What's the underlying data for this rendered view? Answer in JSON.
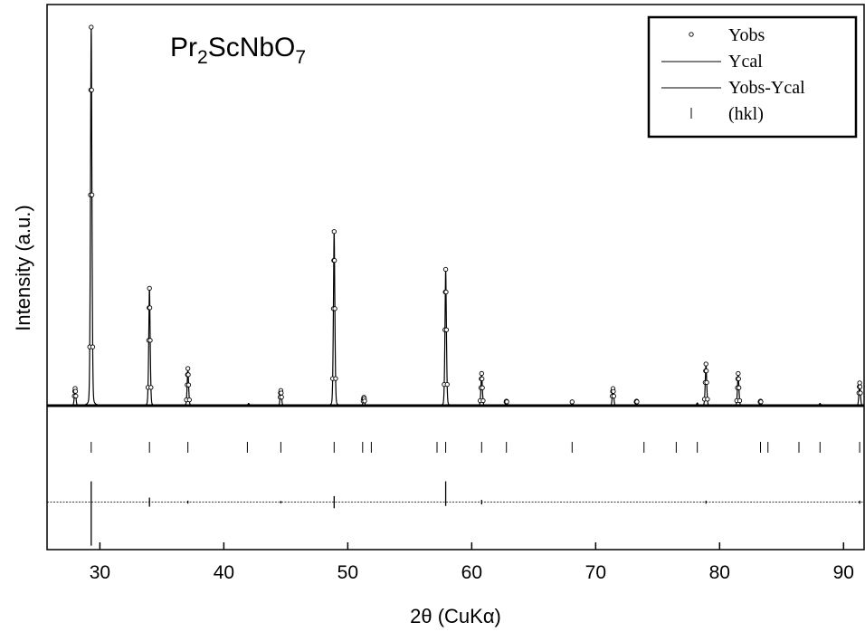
{
  "chart_data": {
    "type": "line",
    "compound_label": {
      "parts": [
        {
          "text": "Pr",
          "sub": false
        },
        {
          "text": "2",
          "sub": true
        },
        {
          "text": "ScNbO",
          "sub": false
        },
        {
          "text": "7",
          "sub": true
        }
      ]
    },
    "xlabel": "2θ (CuKα)",
    "ylabel": "Intensity (a.u.)",
    "xlim": [
      25.7,
      91.5
    ],
    "ylim": [
      -0.375,
      1.0
    ],
    "x_ticks": [
      30,
      40,
      50,
      60,
      70,
      80,
      90
    ],
    "x_tick_labels": [
      "30",
      "40",
      "50",
      "60",
      "70",
      "80",
      "90"
    ],
    "y_ticks_shown": false,
    "legend": {
      "position": "top-right",
      "entries": [
        {
          "label": "Yobs",
          "marker": "open-circle"
        },
        {
          "label": "Ycal",
          "marker": "line"
        },
        {
          "label": "Yobs-Ycal",
          "marker": "line"
        },
        {
          "label": "(hkl)",
          "marker": "vertical-tick"
        }
      ]
    },
    "background_level": 0.0,
    "peaks": [
      {
        "x": 28.0,
        "y": 0.045
      },
      {
        "x": 29.3,
        "y": 1.0
      },
      {
        "x": 34.0,
        "y": 0.31
      },
      {
        "x": 37.1,
        "y": 0.098
      },
      {
        "x": 42.0,
        "y": 0.006
      },
      {
        "x": 44.6,
        "y": 0.04
      },
      {
        "x": 48.9,
        "y": 0.46
      },
      {
        "x": 51.3,
        "y": 0.022
      },
      {
        "x": 57.9,
        "y": 0.36
      },
      {
        "x": 60.8,
        "y": 0.085
      },
      {
        "x": 62.8,
        "y": 0.012
      },
      {
        "x": 68.1,
        "y": 0.01
      },
      {
        "x": 71.4,
        "y": 0.045
      },
      {
        "x": 73.3,
        "y": 0.012
      },
      {
        "x": 78.2,
        "y": 0.007
      },
      {
        "x": 78.9,
        "y": 0.11
      },
      {
        "x": 81.5,
        "y": 0.085
      },
      {
        "x": 83.3,
        "y": 0.012
      },
      {
        "x": 88.1,
        "y": 0.006
      },
      {
        "x": 91.3,
        "y": 0.06
      }
    ],
    "hkl_positions": [
      29.3,
      34.0,
      37.1,
      41.9,
      44.6,
      48.9,
      51.2,
      51.9,
      57.2,
      57.9,
      60.8,
      62.8,
      68.1,
      73.9,
      76.5,
      78.2,
      83.3,
      83.9,
      86.4,
      88.1,
      91.3
    ],
    "hkl_level": -0.11,
    "difference_baseline": -0.255,
    "difference_features": [
      {
        "x": 29.3,
        "up": 0.055,
        "down": 0.115
      },
      {
        "x": 34.0,
        "up": 0.012,
        "down": 0.012
      },
      {
        "x": 37.1,
        "up": 0.004,
        "down": 0.004
      },
      {
        "x": 44.6,
        "up": 0.003,
        "down": 0.003
      },
      {
        "x": 48.9,
        "up": 0.016,
        "down": 0.016
      },
      {
        "x": 57.9,
        "up": 0.055,
        "down": 0.01
      },
      {
        "x": 60.8,
        "up": 0.006,
        "down": 0.006
      },
      {
        "x": 78.9,
        "up": 0.004,
        "down": 0.004
      },
      {
        "x": 91.3,
        "up": 0.004,
        "down": 0.004
      }
    ]
  }
}
